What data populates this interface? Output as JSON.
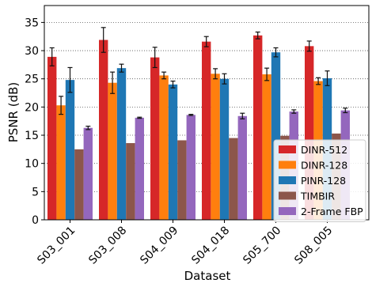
{
  "chart_data": {
    "type": "bar",
    "title": "",
    "xlabel": "Dataset",
    "ylabel": "PSNR (dB)",
    "ylim": [
      0,
      38
    ],
    "yticks": [
      0,
      5,
      10,
      15,
      20,
      25,
      30,
      35
    ],
    "grid": "horizontal-dotted",
    "legend_position": "lower-right",
    "categories": [
      "S03_001",
      "S03_008",
      "S04_009",
      "S04_018",
      "S05_700",
      "S08_005"
    ],
    "series": [
      {
        "name": "DINR-512",
        "color": "#d62728",
        "values": [
          28.9,
          31.9,
          28.8,
          31.6,
          32.7,
          30.8
        ],
        "errors": [
          1.6,
          2.2,
          1.8,
          0.9,
          0.6,
          0.9
        ]
      },
      {
        "name": "DINR-128",
        "color": "#ff7f0e",
        "values": [
          20.3,
          24.3,
          25.6,
          25.9,
          25.8,
          24.6
        ],
        "errors": [
          1.6,
          1.9,
          0.6,
          0.9,
          1.1,
          0.6
        ]
      },
      {
        "name": "PINR-128",
        "color": "#1f77b4",
        "values": [
          24.8,
          26.9,
          24.0,
          25.0,
          29.7,
          25.1
        ],
        "errors": [
          2.2,
          0.7,
          0.6,
          0.9,
          0.8,
          1.3
        ]
      },
      {
        "name": "TIMBIR",
        "color": "#8c564b",
        "values": [
          12.5,
          13.6,
          14.1,
          14.5,
          14.9,
          15.3
        ],
        "errors": [
          0,
          0,
          0,
          0,
          0,
          0
        ]
      },
      {
        "name": "2-Frame FBP",
        "color": "#9467bd",
        "values": [
          16.3,
          18.1,
          18.6,
          18.4,
          19.2,
          19.4
        ],
        "errors": [
          0.3,
          0.1,
          0.1,
          0.5,
          0.3,
          0.4
        ]
      }
    ]
  }
}
